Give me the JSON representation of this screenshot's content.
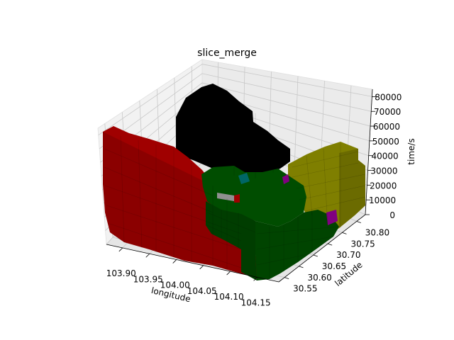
{
  "chart_data": {
    "type": "voxel-3d",
    "title": "slice_merge",
    "xlabel": "longitude",
    "ylabel": "latitude",
    "zlabel": "time/s",
    "x_ticks": [
      "103.90",
      "103.95",
      "104.00",
      "104.05",
      "104.10",
      "104.15"
    ],
    "y_ticks": [
      "30.55",
      "30.60",
      "30.65",
      "30.70",
      "30.75",
      "30.80"
    ],
    "z_ticks": [
      "0",
      "10000",
      "20000",
      "30000",
      "40000",
      "50000",
      "60000",
      "70000",
      "80000"
    ],
    "xlim": [
      103.87,
      104.19
    ],
    "ylim": [
      30.53,
      30.83
    ],
    "zlim": [
      0,
      85000
    ],
    "grid": true,
    "regions": [
      {
        "color": "#8b0000",
        "description": "red block, front-left"
      },
      {
        "color": "#000000",
        "description": "black block, top-back"
      },
      {
        "color": "#004400",
        "description": "dark green block, front-right"
      },
      {
        "color": "#7f7f00",
        "description": "olive block, back-right"
      },
      {
        "color": "#800080",
        "description": "small purple cells"
      },
      {
        "color": "#006666",
        "description": "small teal cells"
      },
      {
        "color": "#808080",
        "description": "small grey cells"
      }
    ]
  }
}
